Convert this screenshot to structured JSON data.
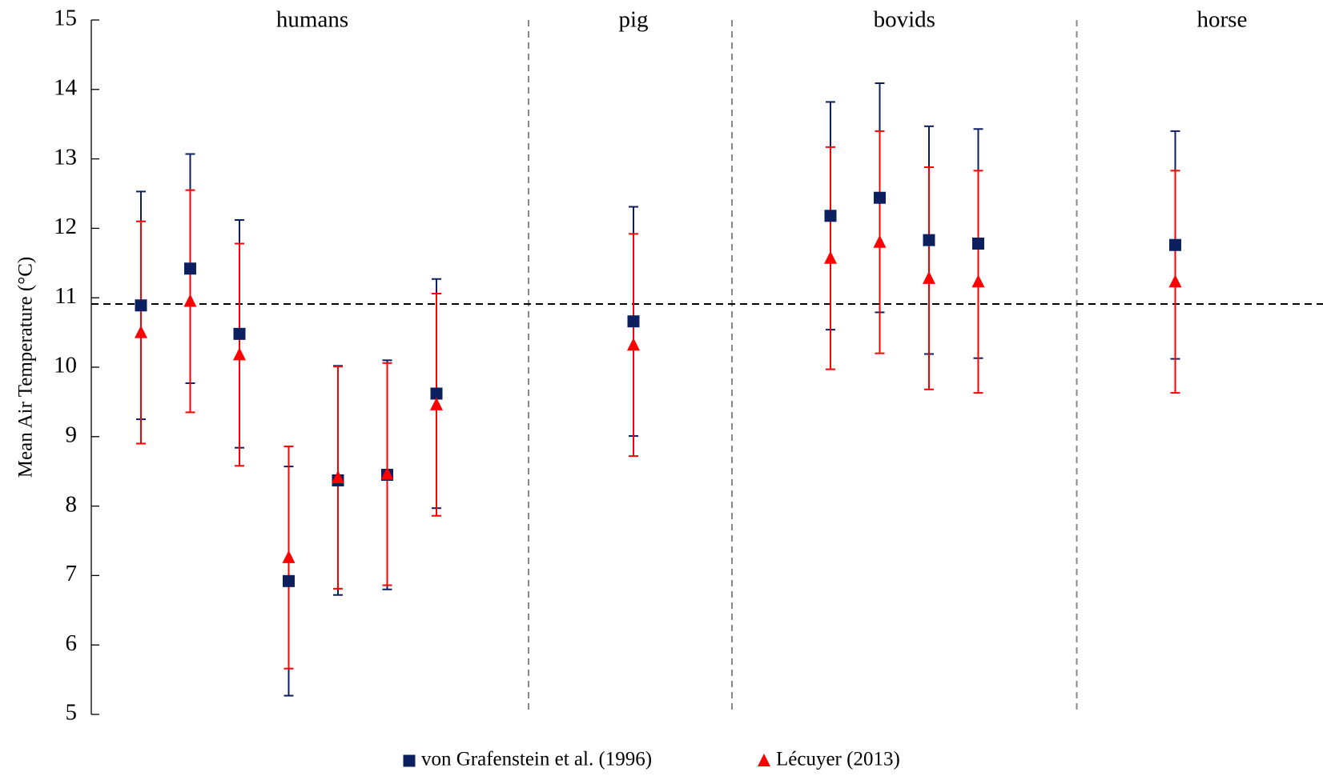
{
  "chart_data": {
    "type": "errorbar",
    "y_label": "Mean Air Temperature (°C)",
    "annotations": [
      "humans",
      "pig",
      "bovids",
      "horse"
    ],
    "categories": [
      null,
      null,
      null,
      null,
      null,
      null,
      null,
      null,
      null,
      null,
      null,
      null,
      null
    ],
    "series": [
      {
        "name": "von Grafenstein et al. (1996)",
        "color": "#0c1f5f",
        "marker": "square",
        "values": [
          10.89,
          11.42,
          10.48,
          6.92,
          8.37,
          8.45,
          9.62,
          10.66,
          12.18,
          12.44,
          11.83,
          11.78,
          11.76
        ],
        "errors": [
          1.64,
          1.65,
          1.64,
          1.65,
          1.65,
          1.65,
          1.65,
          1.65,
          1.64,
          1.65,
          1.64,
          1.65,
          1.64
        ]
      },
      {
        "name": "Lécuyer (2013)",
        "color": "#ff0000",
        "marker": "triangle",
        "values": [
          10.5,
          10.95,
          10.18,
          7.26,
          8.41,
          8.46,
          9.46,
          10.32,
          11.57,
          11.8,
          11.28,
          11.23,
          11.23
        ],
        "errors": [
          1.6,
          1.6,
          1.6,
          1.6,
          1.6,
          1.6,
          1.6,
          1.6,
          1.6,
          1.6,
          1.6,
          1.6,
          1.6
        ]
      }
    ],
    "reference_line": 10.91,
    "ylim": [
      5,
      15
    ],
    "yticks": [
      5,
      6,
      7,
      8,
      9,
      10,
      11,
      12,
      13,
      14,
      15
    ],
    "grid": false
  }
}
